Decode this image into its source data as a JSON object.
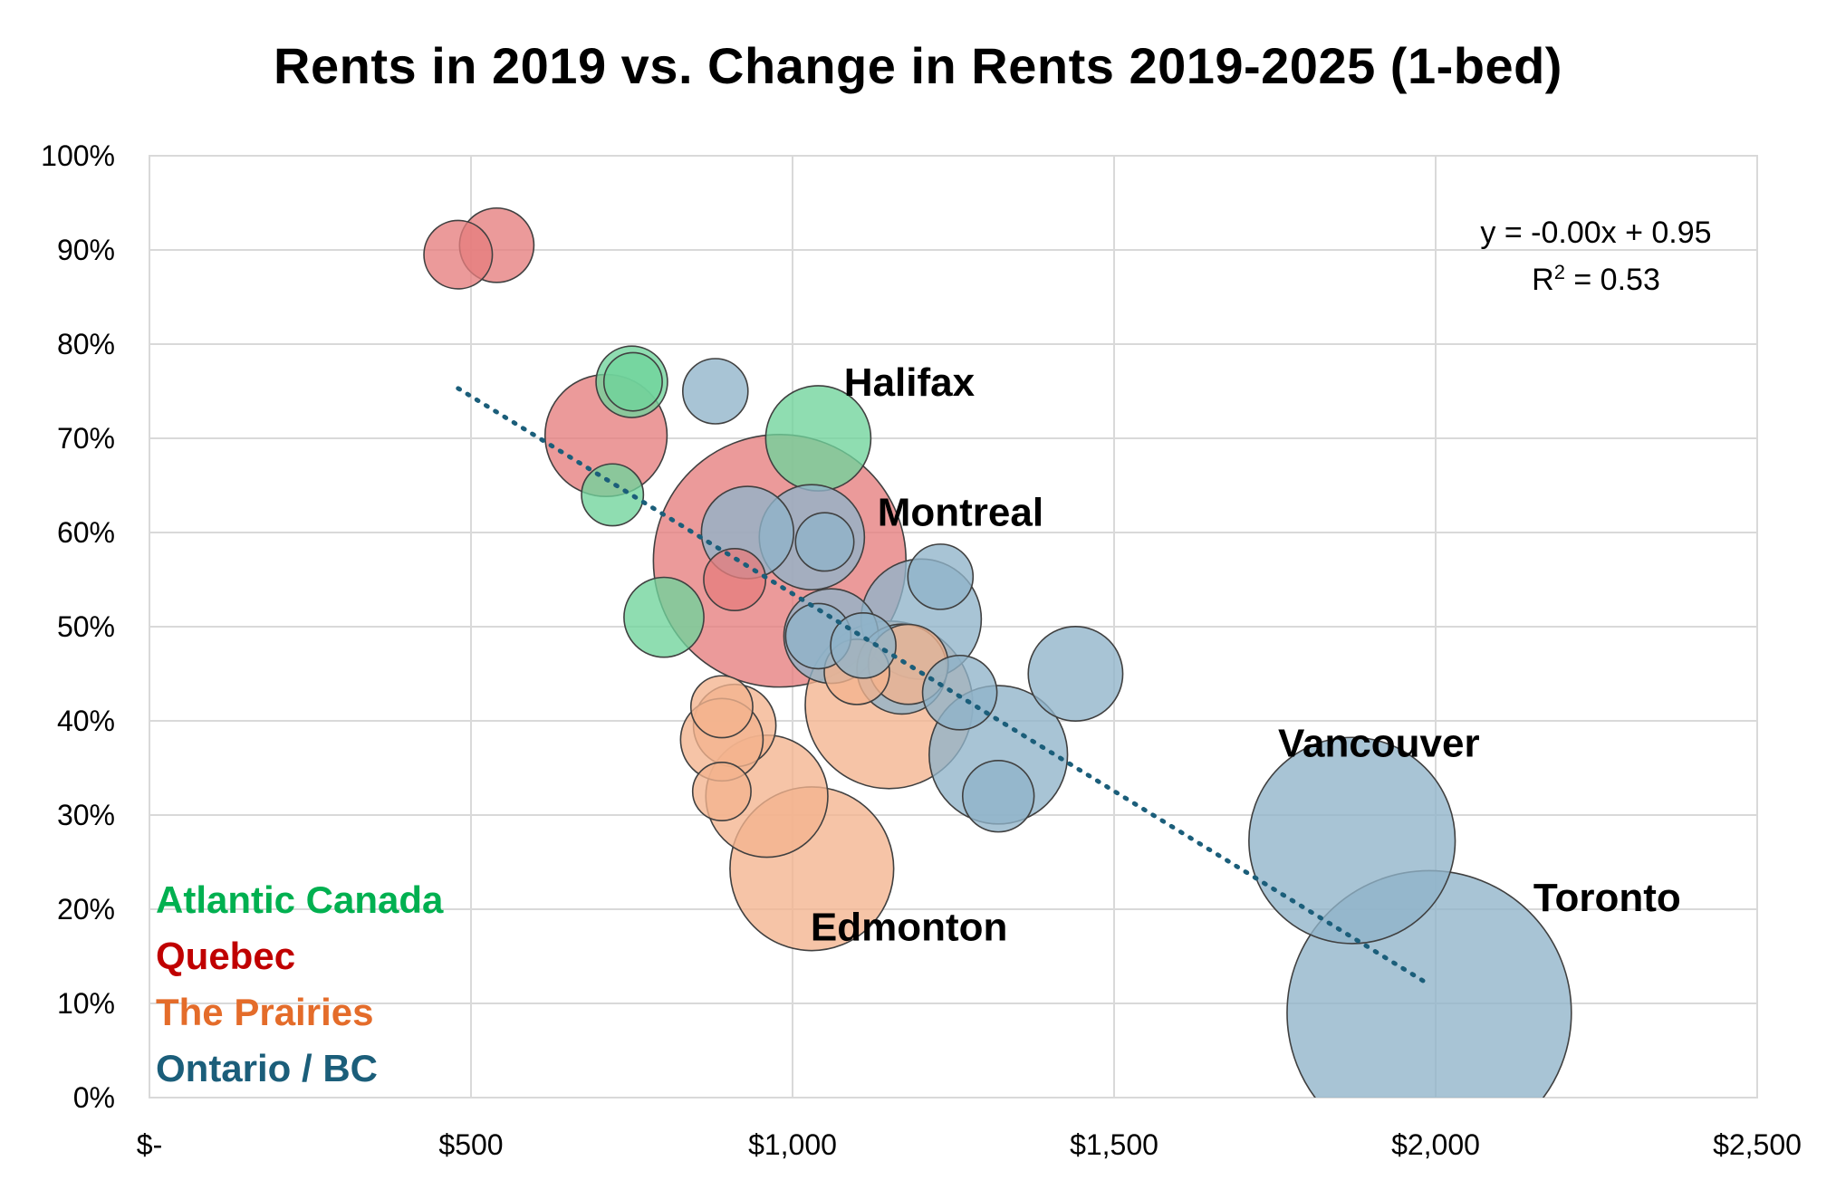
{
  "chart_data": {
    "type": "scatter",
    "subtype": "bubble",
    "title": "Rents in 2019 vs. Change in Rents 2019-2025 (1-bed)",
    "xlabel": "",
    "ylabel": "",
    "xlim": [
      0,
      2500
    ],
    "ylim": [
      0,
      1.0
    ],
    "x_ticks": [
      0,
      500,
      1000,
      1500,
      2000,
      2500
    ],
    "x_tick_labels": [
      "$-",
      "$500",
      "$1,000",
      "$1,500",
      "$2,000",
      "$2,500"
    ],
    "y_ticks": [
      0,
      0.1,
      0.2,
      0.3,
      0.4,
      0.5,
      0.6,
      0.7,
      0.8,
      0.9,
      1.0
    ],
    "y_tick_labels": [
      "0%",
      "10%",
      "20%",
      "30%",
      "40%",
      "50%",
      "60%",
      "70%",
      "80%",
      "90%",
      "100%"
    ],
    "grid": true,
    "trendline": {
      "style": "dotted",
      "color": "#1b5e7a",
      "x_range": [
        480,
        1990
      ],
      "equation": "y = -0.00x + 0.95",
      "r2_prefix": "R",
      "r2_superscript": "2",
      "r2_suffix": " = 0.53"
    },
    "legend": [
      {
        "name": "Atlantic Canada",
        "color": "#00b050"
      },
      {
        "name": "Quebec",
        "color": "#c00000"
      },
      {
        "name": "The Prairies",
        "color": "#e46c2a"
      },
      {
        "name": "Ontario / BC",
        "color": "#1b5e7a"
      }
    ],
    "legend_position": "bottom-left",
    "series": [
      {
        "name": "Atlantic Canada",
        "fill": "#6fd49b",
        "points": [
          {
            "x": 750,
            "y": 0.76,
            "size": 1.2
          },
          {
            "x": 752,
            "y": 0.76,
            "size": 0.8
          },
          {
            "x": 1040,
            "y": 0.7,
            "size": 2.6
          },
          {
            "x": 720,
            "y": 0.64,
            "size": 0.9
          },
          {
            "x": 800,
            "y": 0.51,
            "size": 1.5
          }
        ]
      },
      {
        "name": "Quebec",
        "fill": "#e57d7d",
        "points": [
          {
            "x": 480,
            "y": 0.895,
            "size": 1.1
          },
          {
            "x": 540,
            "y": 0.905,
            "size": 1.3
          },
          {
            "x": 710,
            "y": 0.703,
            "size": 3.5
          },
          {
            "x": 980,
            "y": 0.57,
            "size": 15.0
          },
          {
            "x": 910,
            "y": 0.55,
            "size": 0.9
          }
        ]
      },
      {
        "name": "The Prairies",
        "fill": "#f4b48e",
        "points": [
          {
            "x": 890,
            "y": 0.415,
            "size": 0.9
          },
          {
            "x": 910,
            "y": 0.395,
            "size": 1.6
          },
          {
            "x": 890,
            "y": 0.38,
            "size": 1.6
          },
          {
            "x": 890,
            "y": 0.325,
            "size": 0.8
          },
          {
            "x": 960,
            "y": 0.32,
            "size": 3.5
          },
          {
            "x": 1030,
            "y": 0.243,
            "size": 6.3
          },
          {
            "x": 1150,
            "y": 0.417,
            "size": 6.6
          },
          {
            "x": 1180,
            "y": 0.46,
            "size": 1.5
          },
          {
            "x": 1100,
            "y": 0.452,
            "size": 1.0
          }
        ]
      },
      {
        "name": "Ontario / BC",
        "fill": "#8fb4c9",
        "points": [
          {
            "x": 880,
            "y": 0.75,
            "size": 1.0
          },
          {
            "x": 930,
            "y": 0.6,
            "size": 2.0
          },
          {
            "x": 1030,
            "y": 0.595,
            "size": 2.6
          },
          {
            "x": 1050,
            "y": 0.59,
            "size": 0.8
          },
          {
            "x": 1230,
            "y": 0.553,
            "size": 1.0
          },
          {
            "x": 1200,
            "y": 0.508,
            "size": 3.4
          },
          {
            "x": 1060,
            "y": 0.49,
            "size": 2.1
          },
          {
            "x": 1040,
            "y": 0.49,
            "size": 1.0
          },
          {
            "x": 1110,
            "y": 0.48,
            "size": 1.0
          },
          {
            "x": 1170,
            "y": 0.455,
            "size": 1.9
          },
          {
            "x": 1260,
            "y": 0.43,
            "size": 1.3
          },
          {
            "x": 1440,
            "y": 0.45,
            "size": 2.1
          },
          {
            "x": 1320,
            "y": 0.364,
            "size": 4.5
          },
          {
            "x": 1320,
            "y": 0.32,
            "size": 1.2
          },
          {
            "x": 1870,
            "y": 0.273,
            "size": 10.0
          },
          {
            "x": 1990,
            "y": 0.09,
            "size": 19.0
          }
        ]
      }
    ],
    "annotations": [
      {
        "text": "Halifax",
        "x": 1080,
        "y": 0.745
      },
      {
        "text": "Montreal",
        "x": 1132,
        "y": 0.607
      },
      {
        "text": "Vancouver",
        "x": 1755,
        "y": 0.362
      },
      {
        "text": "Toronto",
        "x": 2152,
        "y": 0.198
      },
      {
        "text": "Edmonton",
        "x": 1028,
        "y": 0.167
      }
    ]
  }
}
